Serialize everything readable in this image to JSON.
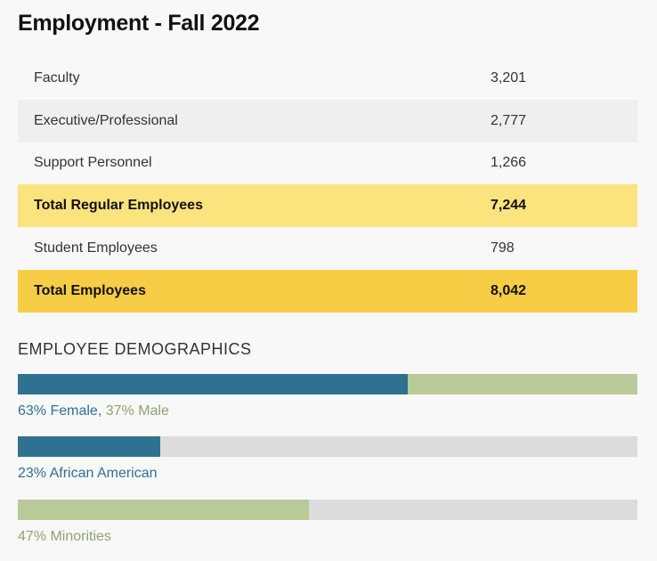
{
  "title": "Employment - Fall 2022",
  "rows": [
    {
      "label": "Faculty",
      "value": "3,201"
    },
    {
      "label": "Executive/Professional",
      "value": "2,777"
    },
    {
      "label": "Support Personnel",
      "value": "1,266"
    },
    {
      "label": "Total Regular Employees",
      "value": "7,244"
    },
    {
      "label": "Student Employees",
      "value": "798"
    },
    {
      "label": "Total Employees",
      "value": "8,042"
    }
  ],
  "demographics": {
    "heading": "EMPLOYEE DEMOGRAPHICS",
    "gender": {
      "female_percent": 63,
      "male_percent": 37,
      "female_label": "63% Female",
      "separator": ",",
      "male_label": "37% Male"
    },
    "african_american": {
      "percent": 23,
      "label": "23% African American"
    },
    "minorities": {
      "percent": 47,
      "label": "47% Minorities"
    }
  },
  "colors": {
    "blue": "#2f7190",
    "green": "#b9ca99",
    "track": "#dcdcdc",
    "total_regular": "#fbe37d",
    "total": "#f7cd45",
    "green_text": "#8fa370"
  }
}
